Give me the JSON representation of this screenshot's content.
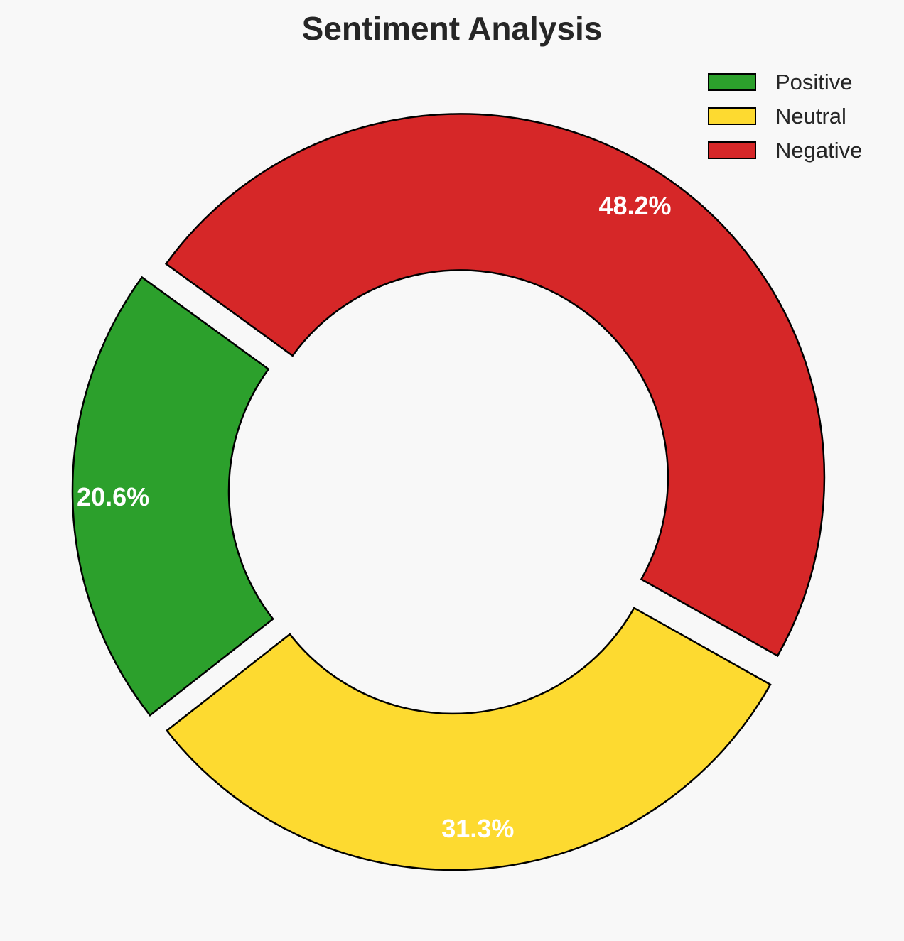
{
  "chart_data": {
    "type": "pie",
    "style": "donut",
    "title": "Sentiment Analysis",
    "legend_position": "top-right",
    "slices": [
      {
        "name": "Positive",
        "value": 20.6,
        "label": "20.6%",
        "color": "#2ca02c"
      },
      {
        "name": "Neutral",
        "value": 31.3,
        "label": "31.3%",
        "color": "#fdda30"
      },
      {
        "name": "Negative",
        "value": 48.2,
        "label": "48.2%",
        "color": "#d62728"
      }
    ],
    "exploded": true,
    "edge_color": "#000000"
  }
}
